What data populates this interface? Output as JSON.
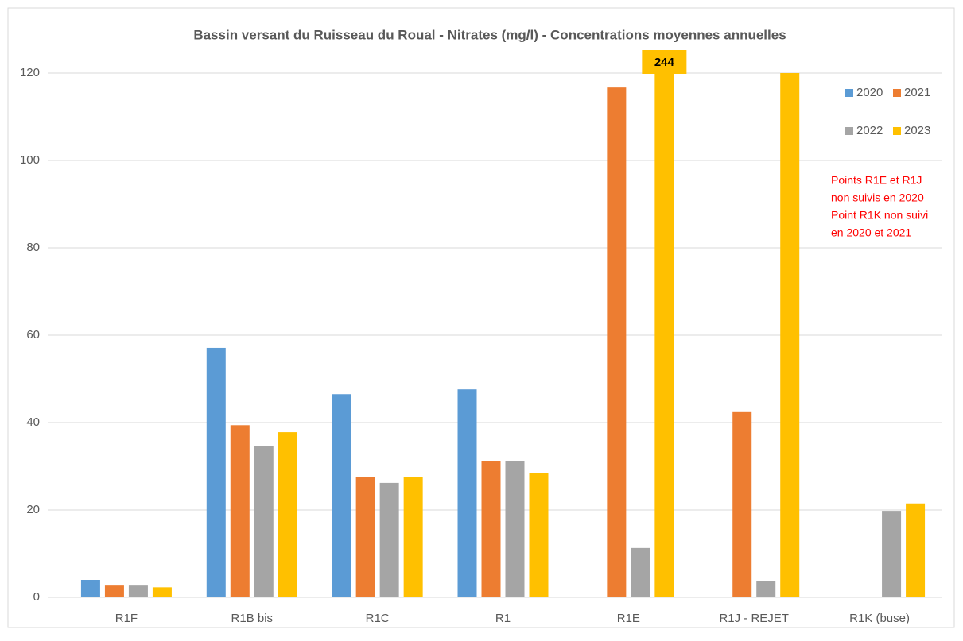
{
  "chart_data": {
    "type": "bar",
    "title": "Bassin versant du Ruisseau du Roual - Nitrates (mg/l) - Concentrations moyennes annuelles",
    "categories": [
      "R1F",
      "R1B bis",
      "R1C",
      "R1",
      "R1E",
      "R1J - REJET",
      "R1K (buse)"
    ],
    "series": [
      {
        "name": "2020",
        "color": "#5b9bd5",
        "values": [
          4.0,
          57.1,
          46.5,
          47.6,
          null,
          null,
          null
        ]
      },
      {
        "name": "2021",
        "color": "#ed7d31",
        "values": [
          2.7,
          39.4,
          27.6,
          31.1,
          116.7,
          42.4,
          null
        ]
      },
      {
        "name": "2022",
        "color": "#a5a5a5",
        "values": [
          2.7,
          34.7,
          26.2,
          31.1,
          11.3,
          3.8,
          19.8
        ]
      },
      {
        "name": "2023",
        "color": "#ffc000",
        "values": [
          2.3,
          37.8,
          27.6,
          28.5,
          244,
          120,
          21.5
        ],
        "value_labels": [
          null,
          null,
          null,
          null,
          "244",
          null,
          null
        ]
      }
    ],
    "ylim": [
      0,
      120
    ],
    "yticks": [
      0,
      20,
      40,
      60,
      80,
      100,
      120
    ],
    "grid": true,
    "annotation": [
      "Points R1E et R1J",
      "non suivis en 2020",
      "Point R1K non suivi",
      "en 2020 et 2021"
    ]
  }
}
